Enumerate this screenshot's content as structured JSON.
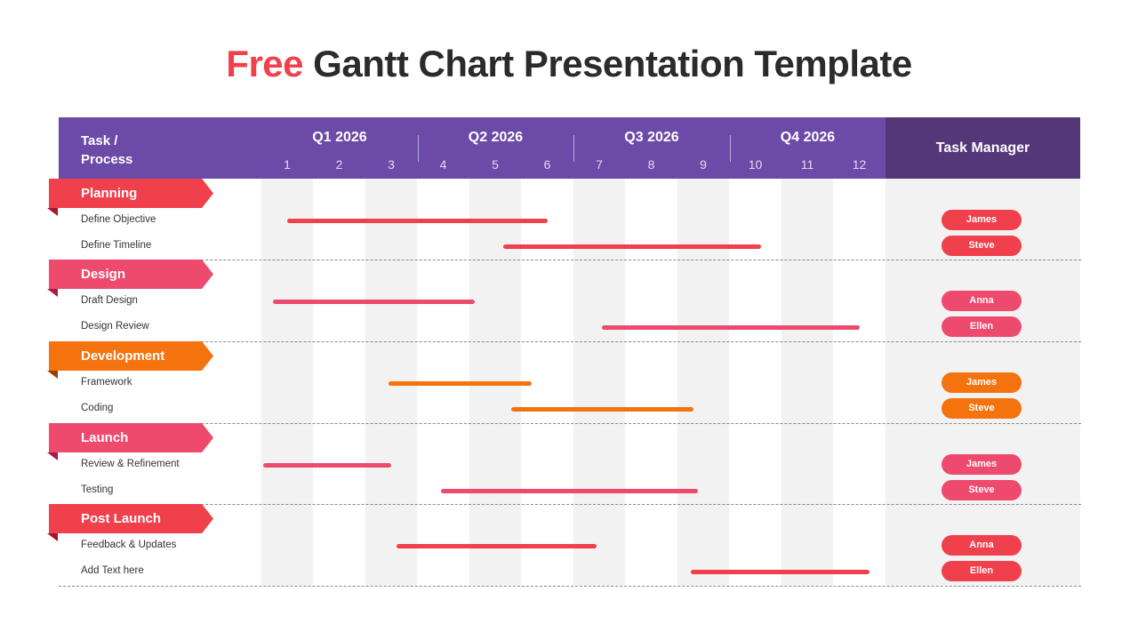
{
  "title": {
    "accent": "Free",
    "rest": " Gantt Chart Presentation Template"
  },
  "header": {
    "task_label": "Task /\nProcess",
    "task_manager_label": "Task  Manager",
    "quarters": [
      "Q1 2026",
      "Q2 2026",
      "Q3 2026",
      "Q4 2026"
    ],
    "months": [
      "1",
      "2",
      "3",
      "4",
      "5",
      "6",
      "7",
      "8",
      "9",
      "10",
      "11",
      "12"
    ]
  },
  "colors": {
    "header": "#6c4aa8",
    "task_manager_header": "#533779",
    "red": "#f0404c",
    "pink": "#ee4a6e",
    "orange": "#f5730f",
    "title_accent": "#f0404c"
  },
  "chart_data": {
    "type": "bar",
    "subtype": "gantt",
    "title": "Free Gantt Chart Presentation Template",
    "x_unit": "month",
    "xlim": [
      0.5,
      12.5
    ],
    "phases": [
      {
        "name": "Planning",
        "color": "#f0404c",
        "fold": "#a8152a",
        "tasks": [
          {
            "name": "Define Objective",
            "start": 1.0,
            "end": 6.0,
            "manager": "James",
            "color": "#f0404c"
          },
          {
            "name": "Define Timeline",
            "start": 5.15,
            "end": 10.1,
            "manager": "Steve",
            "color": "#f0404c"
          }
        ]
      },
      {
        "name": "Design",
        "color": "#ee4a6e",
        "fold": "#a31e40",
        "tasks": [
          {
            "name": "Draft Design",
            "start": 0.73,
            "end": 4.6,
            "manager": "Anna",
            "color": "#ee4a6e"
          },
          {
            "name": "Design Review",
            "start": 7.05,
            "end": 12.0,
            "manager": "Ellen",
            "color": "#ee4a6e"
          }
        ]
      },
      {
        "name": "Development",
        "color": "#f5730f",
        "fold": "#9a3c00",
        "tasks": [
          {
            "name": "Framework",
            "start": 2.95,
            "end": 5.7,
            "manager": "James",
            "color": "#f5730f"
          },
          {
            "name": "Coding",
            "start": 5.3,
            "end": 8.8,
            "manager": "Steve",
            "color": "#f5730f"
          }
        ]
      },
      {
        "name": "Launch",
        "color": "#ee4a6e",
        "fold": "#a31e40",
        "tasks": [
          {
            "name": "Review & Refinement",
            "start": 0.53,
            "end": 3.0,
            "manager": "James",
            "color": "#ee4a6e"
          },
          {
            "name": "Testing",
            "start": 3.95,
            "end": 8.9,
            "manager": "Steve",
            "color": "#ee4a6e"
          }
        ]
      },
      {
        "name": "Post Launch",
        "color": "#f0404c",
        "fold": "#a8152a",
        "tasks": [
          {
            "name": "Feedback & Updates",
            "start": 3.1,
            "end": 6.95,
            "manager": "Anna",
            "color": "#f0404c"
          },
          {
            "name": "Add Text here",
            "start": 8.75,
            "end": 12.2,
            "manager": "Ellen",
            "color": "#f0404c"
          }
        ]
      }
    ]
  }
}
